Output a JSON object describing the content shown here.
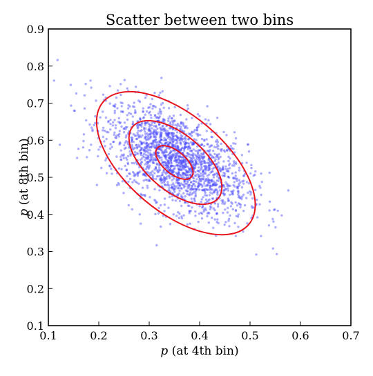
{
  "chart_data": {
    "type": "scatter",
    "title": "Scatter between two bins",
    "xlabel_var": "p",
    "xlabel_rest": " (at 4th bin)",
    "ylabel_var": "p",
    "ylabel_rest": " (at 8th bin)",
    "xlim": [
      0.1,
      0.7
    ],
    "ylim": [
      0.1,
      0.9
    ],
    "xticks": [
      "0.1",
      "0.2",
      "0.3",
      "0.4",
      "0.5",
      "0.6",
      "0.7"
    ],
    "yticks": [
      "0.1",
      "0.2",
      "0.3",
      "0.4",
      "0.5",
      "0.6",
      "0.7",
      "0.8",
      "0.9"
    ],
    "grid": false,
    "point_color": "#4a4aff",
    "contour_color": "#e8141c",
    "points": {
      "count": 2000,
      "mean": [
        0.355,
        0.545
      ],
      "std": [
        0.07,
        0.075
      ],
      "correlation": -0.55
    },
    "contours": [
      {
        "center": [
          0.35,
          0.54
        ],
        "rx": 0.033,
        "ry": 0.033
      },
      {
        "center": [
          0.352,
          0.54
        ],
        "rx": 0.085,
        "ry": 0.085
      },
      {
        "center": [
          0.353,
          0.538
        ],
        "rx": 0.15,
        "ry": 0.15
      }
    ],
    "contour_angle_deg": -40
  }
}
